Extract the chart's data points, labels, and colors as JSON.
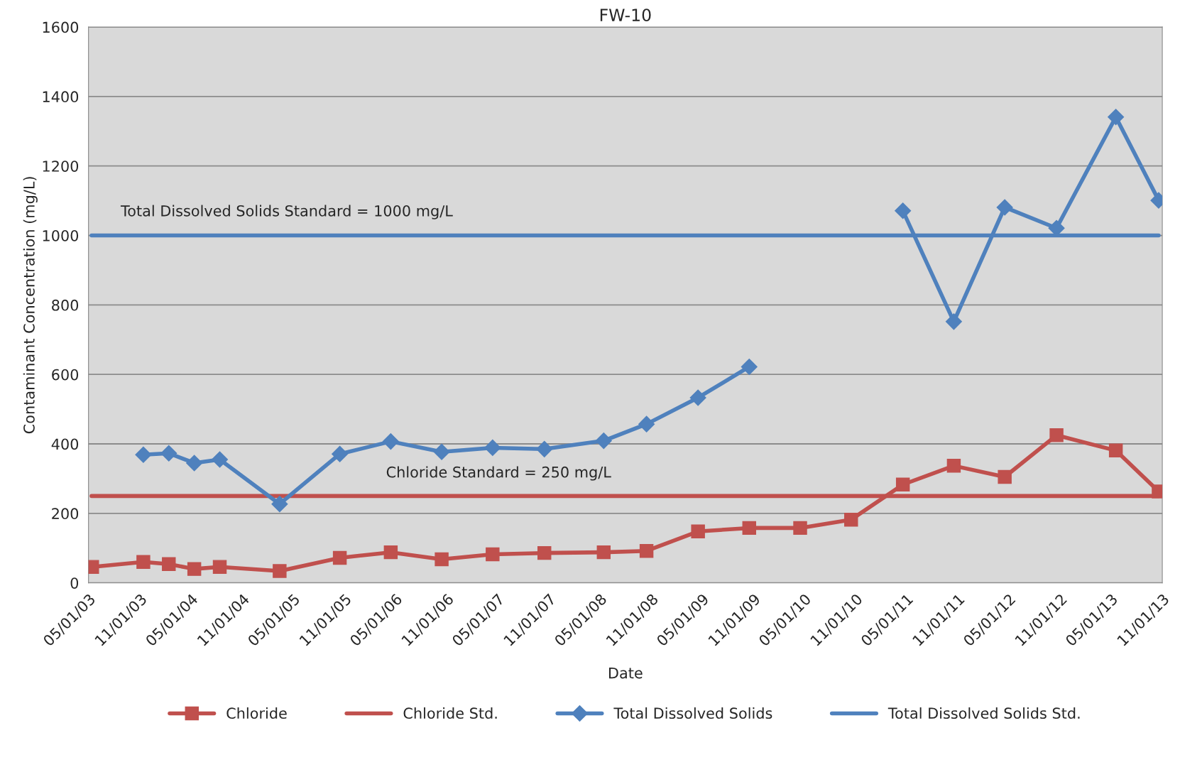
{
  "chart_data": {
    "type": "line",
    "title": "FW-10",
    "xlabel": "Date",
    "ylabel": "Contaminant Concentration (mg/L)",
    "x": [
      "2003-05-14",
      "2003-11-13",
      "2004-02-12",
      "2004-05-13",
      "2004-08-12",
      "2005-03-14",
      "2005-10-15",
      "2006-04-15",
      "2006-10-14",
      "2007-04-14",
      "2007-10-16",
      "2008-05-15",
      "2008-10-15",
      "2009-04-17",
      "2009-10-17",
      "2010-04-17",
      "2010-10-16",
      "2011-04-19",
      "2011-10-18",
      "2012-04-17",
      "2012-10-19",
      "2013-05-19",
      "2013-10-19"
    ],
    "series": [
      {
        "name": "Chloride",
        "color": "#c0504d",
        "marker": "square",
        "values": [
          46,
          60,
          54,
          40,
          46,
          34,
          72,
          88,
          68,
          82,
          86,
          88,
          92,
          148,
          158,
          158,
          182,
          283,
          337,
          305,
          425,
          381,
          263
        ]
      },
      {
        "name": "Chloride Std.",
        "color": "#c0504d",
        "marker": "none",
        "x": [
          "2003-05-12",
          "2013-10-19"
        ],
        "values": [
          250,
          250
        ]
      },
      {
        "name": "Total Dissolved Solids",
        "color": "#4f81bd",
        "marker": "diamond",
        "values": [
          null,
          369,
          373,
          345,
          355,
          227,
          371,
          407,
          377,
          389,
          385,
          409,
          457,
          533,
          622,
          null,
          null,
          1071,
          752,
          1081,
          1021,
          1341,
          1101
        ]
      },
      {
        "name": "Total Dissolved Solids Std.",
        "color": "#4f81bd",
        "marker": "none",
        "x": [
          "2003-05-12",
          "2013-10-19"
        ],
        "values": [
          1000,
          1000
        ]
      }
    ],
    "annotations": [
      "Total Dissolved Solids Standard = 1000 mg/L",
      "Chloride Standard = 250 mg/L"
    ],
    "xlim": [
      "2003-05-01",
      "2013-11-01"
    ],
    "xticks": [
      {
        "value": "2003-05-01",
        "label": "05/01/03"
      },
      {
        "value": "2003-11-01",
        "label": "11/01/03"
      },
      {
        "value": "2004-05-01",
        "label": "05/01/04"
      },
      {
        "value": "2004-11-01",
        "label": "11/01/04"
      },
      {
        "value": "2005-05-01",
        "label": "05/01/05"
      },
      {
        "value": "2005-11-01",
        "label": "11/01/05"
      },
      {
        "value": "2006-05-01",
        "label": "05/01/06"
      },
      {
        "value": "2006-11-01",
        "label": "11/01/06"
      },
      {
        "value": "2007-05-01",
        "label": "05/01/07"
      },
      {
        "value": "2007-11-01",
        "label": "11/01/07"
      },
      {
        "value": "2008-05-01",
        "label": "05/01/08"
      },
      {
        "value": "2008-11-01",
        "label": "11/01/08"
      },
      {
        "value": "2009-05-01",
        "label": "05/01/09"
      },
      {
        "value": "2009-11-01",
        "label": "11/01/09"
      },
      {
        "value": "2010-05-01",
        "label": "05/01/10"
      },
      {
        "value": "2010-11-01",
        "label": "11/01/10"
      },
      {
        "value": "2011-05-01",
        "label": "05/01/11"
      },
      {
        "value": "2011-11-01",
        "label": "11/01/11"
      },
      {
        "value": "2012-05-01",
        "label": "05/01/12"
      },
      {
        "value": "2012-11-01",
        "label": "11/01/12"
      },
      {
        "value": "2013-05-01",
        "label": "05/01/13"
      },
      {
        "value": "2013-11-01",
        "label": "11/01/13"
      }
    ],
    "ylim": [
      0,
      1600
    ],
    "yticks": [
      0,
      200,
      400,
      600,
      800,
      1000,
      1200,
      1400,
      1600
    ],
    "grid": "y",
    "legend": "bottom",
    "line_style": "solid"
  }
}
